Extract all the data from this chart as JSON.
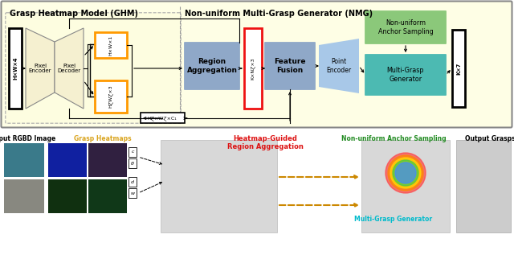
{
  "fig_width": 6.4,
  "fig_height": 3.17,
  "dpi": 100,
  "title_ghm": "Grasp Heatmap Model (GHM)",
  "title_nmg": "Non-uniform Multi-Grasp Generator (NMG)",
  "label_input": "Input RGBD Image",
  "label_grasp_heatmaps": "Grasp Heatmaps",
  "label_heatmap_guided": "Heatmap-Guided\nRegion Aggregation",
  "label_nonuniform": "Non-uniform Anchor Sampling",
  "label_output": "Output Grasps",
  "label_multigrasp": "Multi-Grasp Generator",
  "box_input_text": "H×W×4",
  "box_pixel_encoder": "Pixel\nEncoder",
  "box_pixel_decoder": "Pixel\nDecoder",
  "box_hxwx1": "H×W×1",
  "box_hxwx3": "HⱿWⱿ×3",
  "box_hxwxc1": "HⱿ×WⱿ×C₁",
  "box_region_agg": "Region\nAggregation",
  "box_kxnx3": "K×NⱿ×3",
  "box_feature_fusion": "Feature\nFusion",
  "box_point_encoder": "Point\nEncoder",
  "box_nonuniform_anchor": "Non-uniform\nAnchor Sampling",
  "box_multigrasp_gen": "Multi-Grasp\nGenerator",
  "box_output_text": "K×7",
  "color_outer_bg": "#FEFEE5",
  "color_ghm_bg": "#FDFDE0",
  "color_encoder_decoder": "#F5F0D0",
  "color_region_agg": "#8FA8C8",
  "color_feature_fusion": "#8FA8C8",
  "color_nonuniform_anchor": "#8BC87A",
  "color_multigrasp_gen": "#4CBAB2",
  "color_point_encoder_fill": "#A8C8E8",
  "color_red_box": "#EE1111",
  "color_orange_box": "#FF9900",
  "color_label_grasp": "#DAA520",
  "color_label_heatmap_guided": "#DD1111",
  "color_label_nonuniform": "#228B22",
  "color_label_multigrasp": "#00BBCC"
}
